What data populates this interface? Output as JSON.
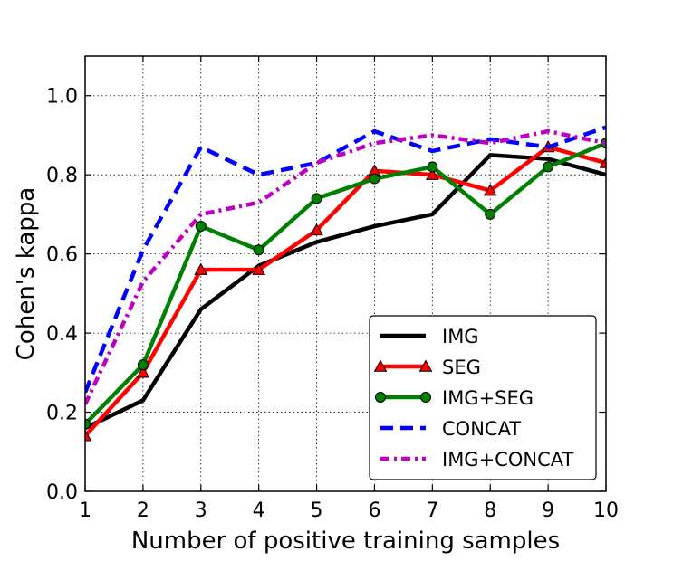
{
  "chart_data": {
    "type": "line",
    "xlabel": "Number of positive training samples",
    "ylabel": "Cohen's kappa",
    "xlim": [
      1,
      10
    ],
    "ylim": [
      0.0,
      1.1
    ],
    "xticks": [
      "1",
      "2",
      "3",
      "4",
      "5",
      "6",
      "7",
      "8",
      "9",
      "10"
    ],
    "yticks": [
      "0.0",
      "0.2",
      "0.4",
      "0.6",
      "0.8",
      "1.0"
    ],
    "grid": true,
    "legend_position": "lower-right",
    "x": [
      1,
      2,
      3,
      4,
      5,
      6,
      7,
      8,
      9,
      10
    ],
    "series": [
      {
        "name": "IMG",
        "color": "#000000",
        "style": "solid",
        "marker": "none",
        "values": [
          0.16,
          0.23,
          0.46,
          0.57,
          0.63,
          0.67,
          0.7,
          0.85,
          0.84,
          0.8
        ]
      },
      {
        "name": "SEG",
        "color": "#ff0000",
        "style": "solid",
        "marker": "triangle",
        "values": [
          0.14,
          0.3,
          0.56,
          0.56,
          0.66,
          0.81,
          0.8,
          0.76,
          0.87,
          0.83
        ]
      },
      {
        "name": "IMG+SEG",
        "color": "#008000",
        "style": "solid",
        "marker": "circle",
        "values": [
          0.17,
          0.32,
          0.67,
          0.61,
          0.74,
          0.79,
          0.82,
          0.7,
          0.82,
          0.88
        ]
      },
      {
        "name": "CONCAT",
        "color": "#0000ff",
        "style": "dashed",
        "marker": "none",
        "values": [
          0.25,
          0.61,
          0.87,
          0.8,
          0.83,
          0.91,
          0.86,
          0.89,
          0.87,
          0.92
        ]
      },
      {
        "name": "IMG+CONCAT",
        "color": "#bf00bf",
        "style": "dashdot",
        "marker": "none",
        "values": [
          0.22,
          0.53,
          0.7,
          0.73,
          0.83,
          0.88,
          0.9,
          0.88,
          0.91,
          0.88
        ]
      }
    ]
  }
}
